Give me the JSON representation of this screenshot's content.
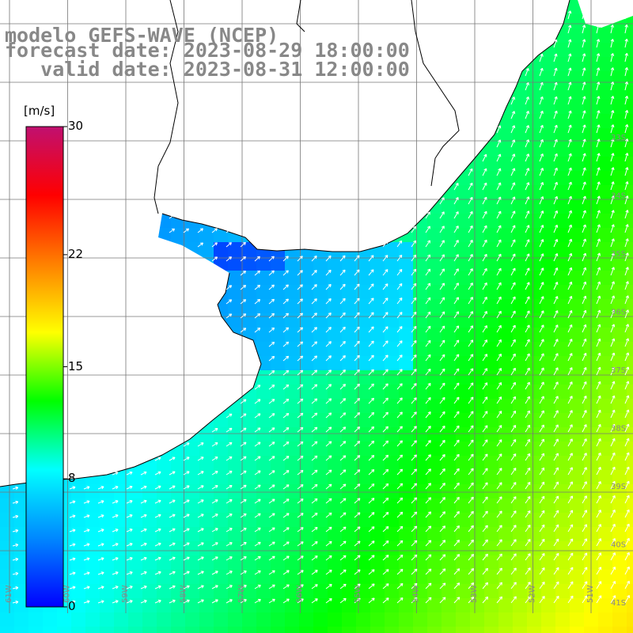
{
  "title": {
    "line1": "modelo GEFS-WAVE (NCEP)",
    "line2": "forecast date: 2023-08-29 18:00:00",
    "line3": "   valid date: 2023-08-31 12:00:00"
  },
  "colorbar": {
    "unit": "[m/s]",
    "min": 0,
    "max": 30,
    "ticks": [
      {
        "value": 30,
        "label": "30"
      },
      {
        "value": 22,
        "label": "22"
      },
      {
        "value": 15,
        "label": "15"
      },
      {
        "value": 8,
        "label": "8"
      },
      {
        "value": 0,
        "label": "0"
      }
    ],
    "colors": [
      "#0000ff",
      "#0088ff",
      "#00ffff",
      "#00ff00",
      "#ffff00",
      "#ff8000",
      "#ff0000",
      "#c01070"
    ]
  },
  "map": {
    "lat_labels": [
      "33S",
      "34S",
      "35S",
      "36S",
      "37S",
      "38S",
      "39S",
      "40S",
      "41S"
    ],
    "lon_labels": [
      "61W",
      "60W",
      "59W",
      "58W",
      "57W",
      "56W",
      "55W",
      "54W",
      "53W",
      "52W",
      "51W"
    ],
    "land_color": "#ffffff",
    "grid_color": "#777777",
    "vector_color": "#ffffff"
  }
}
